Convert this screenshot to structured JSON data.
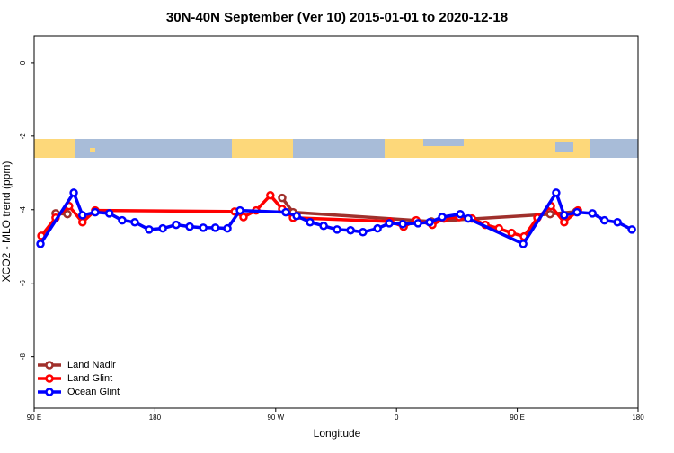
{
  "chart_data": {
    "type": "line",
    "title": "30N-40N September (Ver 10)   2015-01-01 to 2020-12-18",
    "x_label": "Longitude",
    "y_label": "XCO2 - MLO trend (ppm)",
    "xlim": [
      90,
      540
    ],
    "ylim": [
      -9.4,
      0.73
    ],
    "xticks": [
      {
        "value": 90,
        "label": "90 E"
      },
      180,
      {
        "value": 270,
        "label": "90 W"
      },
      {
        "value": 360,
        "label": "0"
      },
      {
        "value": 450,
        "label": "90 E"
      },
      {
        "value": 540,
        "label": "180"
      }
    ],
    "yticks": [
      0,
      -2,
      -4,
      -6,
      -8
    ],
    "grid": false,
    "legend": "bottom-left",
    "series": [
      {
        "name": "Land Nadir",
        "color": "#a0302c",
        "x": [
          106,
          114.8,
          134.9,
          274.8,
          282.9,
          386,
          474.5,
          494
        ],
        "values": [
          -4.1,
          -4.12,
          null,
          -3.68,
          -4.07,
          -4.32,
          -4.12,
          -4.05
        ]
      },
      {
        "name": "Land Glint",
        "color": "#ff0000",
        "x": [
          95.4,
          106,
          116,
          126,
          135.5,
          239.4,
          246,
          255.4,
          266,
          274.8,
          282.9,
          355.2,
          365.3,
          374.7,
          386.7,
          395.4,
          406.8,
          416.2,
          426.2,
          436.3,
          445.7,
          455,
          465,
          475.1,
          485,
          495.2
        ],
        "values": [
          -4.71,
          -4.22,
          -3.9,
          -4.34,
          -4.02,
          -4.05,
          -4.2,
          -4.02,
          -3.61,
          -3.98,
          -4.22,
          -4.32,
          -4.46,
          -4.29,
          -4.41,
          -4.24,
          -4.2,
          -4.24,
          -4.41,
          -4.51,
          -4.63,
          -4.73,
          -4.22,
          -3.9,
          -4.34,
          -4.02
        ]
      },
      {
        "name": "Ocean Glint",
        "color": "#0000ff",
        "x": [
          94.7,
          119.5,
          126,
          135.5,
          146,
          155.6,
          165,
          175.7,
          185.8,
          195.8,
          205.9,
          216,
          225,
          234,
          243.4,
          277.5,
          285.6,
          295.6,
          305.7,
          315.7,
          325.8,
          335,
          345.9,
          354.6,
          364.6,
          376,
          384.7,
          394,
          407.5,
          413.5,
          454.4,
          479,
          485,
          494.5,
          506,
          515,
          524.7,
          535.4
        ],
        "values": [
          -4.93,
          -3.54,
          -4.15,
          -4.07,
          -4.1,
          -4.29,
          -4.34,
          -4.54,
          -4.51,
          -4.41,
          -4.46,
          -4.49,
          -4.49,
          -4.51,
          -4.02,
          -4.07,
          -4.17,
          -4.34,
          -4.44,
          -4.54,
          -4.56,
          -4.61,
          -4.51,
          -4.37,
          -4.39,
          -4.37,
          -4.34,
          -4.2,
          -4.12,
          -4.24,
          -4.93,
          -3.54,
          -4.15,
          -4.07,
          -4.1,
          -4.29,
          -4.34,
          -4.54
        ]
      }
    ]
  }
}
